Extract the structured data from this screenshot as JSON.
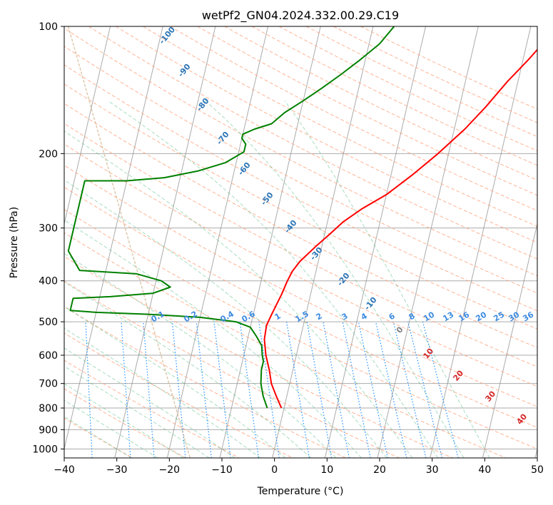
{
  "chart_data": {
    "type": "line",
    "title": "wetPf2_GN04.2024.332.00.29.C19",
    "xlabel": "Temperature (°C)",
    "ylabel": "Pressure (hPa)",
    "xlim": [
      -40,
      50
    ],
    "ylim": [
      1050,
      100
    ],
    "y_scale": "log",
    "grid": true,
    "x_ticks": [
      -40,
      -30,
      -20,
      -10,
      0,
      10,
      20,
      30,
      40,
      50
    ],
    "y_ticks": [
      100,
      200,
      300,
      400,
      500,
      600,
      700,
      800,
      900,
      1000
    ],
    "series": [
      {
        "color": "#ff0000",
        "points": [
          [
            -0.5,
            800
          ],
          [
            -2,
            750
          ],
          [
            -3.5,
            700
          ],
          [
            -4.5,
            650
          ],
          [
            -5.8,
            600
          ],
          [
            -6.8,
            550
          ],
          [
            -7,
            510
          ],
          [
            -6.5,
            480
          ],
          [
            -5.5,
            430
          ],
          [
            -5,
            400
          ],
          [
            -4.5,
            380
          ],
          [
            -3.5,
            360
          ],
          [
            -1,
            330
          ],
          [
            1,
            310
          ],
          [
            3,
            290
          ],
          [
            6,
            270
          ],
          [
            10,
            250
          ],
          [
            14,
            225
          ],
          [
            18,
            200
          ],
          [
            22,
            175
          ],
          [
            25,
            155
          ],
          [
            28,
            135
          ],
          [
            31,
            120
          ],
          [
            33,
            110
          ],
          [
            35,
            100
          ]
        ]
      },
      {
        "color": "#008000",
        "points": [
          [
            -3.2,
            800
          ],
          [
            -4.5,
            750
          ],
          [
            -5.5,
            700
          ],
          [
            -6,
            650
          ],
          [
            -6,
            620
          ],
          [
            -6.5,
            600
          ],
          [
            -7,
            570
          ],
          [
            -8.5,
            540
          ],
          [
            -10,
            515
          ],
          [
            -13,
            500
          ],
          [
            -20,
            488
          ],
          [
            -30,
            480
          ],
          [
            -40,
            475
          ],
          [
            -45,
            470
          ],
          [
            -45,
            440
          ],
          [
            -38,
            436
          ],
          [
            -30,
            428
          ],
          [
            -27,
            414
          ],
          [
            -29,
            400
          ],
          [
            -34,
            385
          ],
          [
            -45,
            378
          ],
          [
            -48,
            340
          ],
          [
            -48,
            232
          ],
          [
            -40,
            232
          ],
          [
            -33,
            228
          ],
          [
            -27,
            220
          ],
          [
            -22,
            210
          ],
          [
            -19,
            198
          ],
          [
            -19,
            190
          ],
          [
            -20,
            184
          ],
          [
            -20,
            180
          ],
          [
            -18,
            175
          ],
          [
            -15,
            170
          ],
          [
            -13,
            160
          ],
          [
            -10,
            150
          ],
          [
            -7,
            140
          ],
          [
            -4,
            130
          ],
          [
            -1,
            120
          ],
          [
            2,
            110
          ],
          [
            4,
            100
          ]
        ]
      }
    ],
    "dry_adiabat_labels": [
      "-100",
      "-90",
      "-80",
      "-70",
      "-60",
      "-50",
      "-40",
      "-30",
      "-20",
      "-10"
    ],
    "mixing_ratio_labels": [
      "0.1",
      "0.2",
      "0.4",
      "0.6",
      "1",
      "1.5",
      "2",
      "3",
      "4",
      "6",
      "8",
      "10",
      "13",
      "16",
      "20",
      "25",
      "30",
      "36"
    ],
    "moist_adiabat_labels": [
      "0",
      "10",
      "20",
      "30",
      "40"
    ],
    "colors": {
      "temperature": "#ff0000",
      "dewpoint": "#008000",
      "dry_adiabat": "#ffa07a",
      "moist_adiabat": "#3cb371",
      "mixing_ratio": "#1e90ff",
      "isotherm": "#888888",
      "isobar": "#888888",
      "dry_adiabat_label": "#2c75b6",
      "mixing_ratio_label": "#3d8be0",
      "moist_adiabat_label_zero": "#808080",
      "moist_adiabat_label": "#d62728"
    }
  }
}
